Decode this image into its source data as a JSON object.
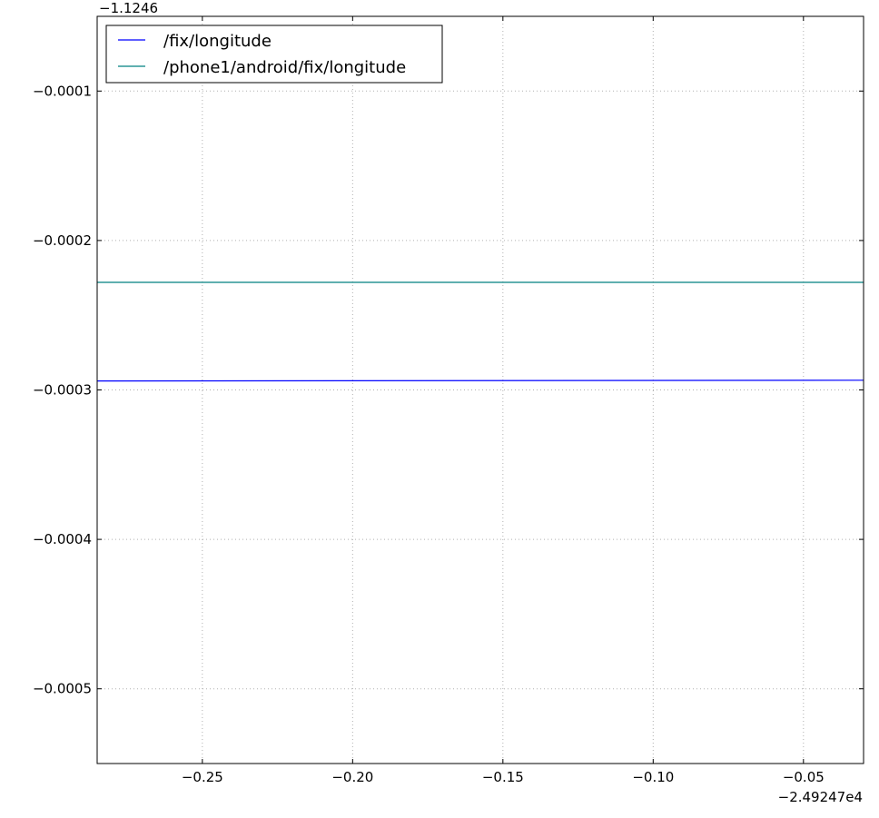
{
  "chart_data": {
    "type": "line",
    "title": "",
    "xlabel": "",
    "ylabel": "",
    "x_offset_label": "−2.49247e4",
    "y_offset_label": "−1.1246",
    "xlim": [
      -0.285,
      -0.03
    ],
    "ylim": [
      -0.00055,
      -5e-05
    ],
    "x_ticks": [
      -0.25,
      -0.2,
      -0.15,
      -0.1,
      -0.05
    ],
    "x_tick_labels": [
      "−0.25",
      "−0.20",
      "−0.15",
      "−0.10",
      "−0.05"
    ],
    "y_ticks": [
      -0.0001,
      -0.0002,
      -0.0003,
      -0.0004,
      -0.0005
    ],
    "y_tick_labels": [
      "−0.0001",
      "−0.0002",
      "−0.0003",
      "−0.0004",
      "−0.0005"
    ],
    "grid": true,
    "legend_position": "top-left",
    "series": [
      {
        "name": "/fix/longitude",
        "color": "#0000ff",
        "x": [
          -0.285,
          -0.03
        ],
        "y": [
          -0.000294,
          -0.0002935
        ]
      },
      {
        "name": "/phone1/android/fix/longitude",
        "color": "#008080",
        "x": [
          -0.285,
          -0.03
        ],
        "y": [
          -0.000228,
          -0.000228
        ]
      }
    ]
  }
}
